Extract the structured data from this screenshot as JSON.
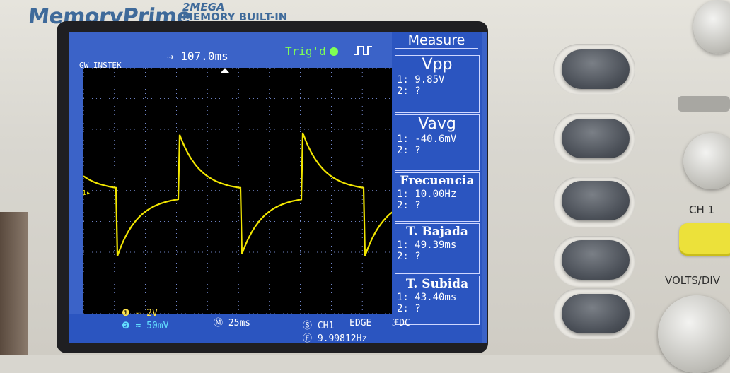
{
  "device": {
    "brand": "MemoryPrime",
    "brand_line1": "2MEGA",
    "brand_line2": "MEMORY BUILT-IN",
    "maker": "GW INSTEK"
  },
  "status": {
    "timebase_pos": "107.0ms",
    "trigger": "Trig'd"
  },
  "measure": {
    "title": "Measure",
    "items": [
      {
        "name": "Vpp",
        "ch1": "1: 9.85V",
        "ch2": "2:   ?"
      },
      {
        "name": "Vavg",
        "ch1": "1: -40.6mV",
        "ch2": "2:   ?"
      },
      {
        "name": "Frecuencia",
        "ch1": "1: 10.00Hz",
        "ch2": "2:   ?"
      },
      {
        "name": "T. Bajada",
        "ch1": "1: 49.39ms",
        "ch2": "2:   ?"
      },
      {
        "name": "T. Subida",
        "ch1": "1: 43.40ms",
        "ch2": "2:   ?"
      }
    ]
  },
  "bottom": {
    "ch1_scale": "2V",
    "ch2_scale": "50mV",
    "timebase": "25ms",
    "trig_source": "CH1",
    "trig_type": "EDGE",
    "coupling": "DC",
    "freq": "9.99812Hz"
  },
  "panel": {
    "ch1_label": "CH 1",
    "volts_label": "VOLTS/DIV"
  },
  "colors": {
    "screen_bg": "#3b63c8",
    "trace": "#f2e600",
    "grid": "#8fa9ff"
  }
}
